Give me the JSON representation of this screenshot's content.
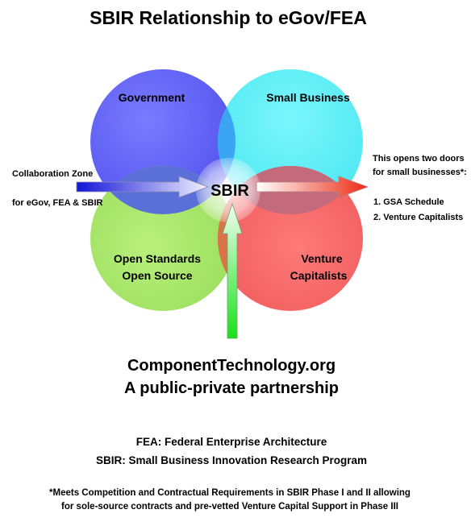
{
  "title": "SBIR Relationship to eGov/FEA",
  "circles": {
    "government": {
      "label": "Government",
      "color": "#5f5ff7"
    },
    "small_business": {
      "label": "Small Business",
      "color": "#5ef0f7"
    },
    "open_standards": {
      "line1": "Open Standards",
      "line2": "Open Source",
      "color": "#a6e66a"
    },
    "venture_capitalists": {
      "line1": "Venture",
      "line2": "Capitalists",
      "color": "#f7686a"
    }
  },
  "center": {
    "label": "SBIR"
  },
  "left_note": {
    "line1": "Collaboration Zone",
    "line2": "for eGov, FEA & SBIR"
  },
  "right_note": {
    "line1": "This opens two doors",
    "line2": "for small businesses*:",
    "item1": "1. GSA Schedule",
    "item2": "2. Venture Capitalists"
  },
  "partner": {
    "line1": "ComponentTechnology.org",
    "line2": "A public-private partnership"
  },
  "definitions": {
    "fea": "FEA: Federal Enterprise Architecture",
    "sbir": "SBIR: Small Business Innovation Research Program"
  },
  "footnote": {
    "line1": "*Meets Competition and Contractual Requirements in SBIR Phase I and II allowing",
    "line2": "for sole-source contracts and pre-vetted Venture Capital Support in Phase III"
  },
  "arrows": {
    "left_color": "#1a1ae0",
    "right_color": "#f0301a",
    "bottom_color": "#22e022"
  }
}
